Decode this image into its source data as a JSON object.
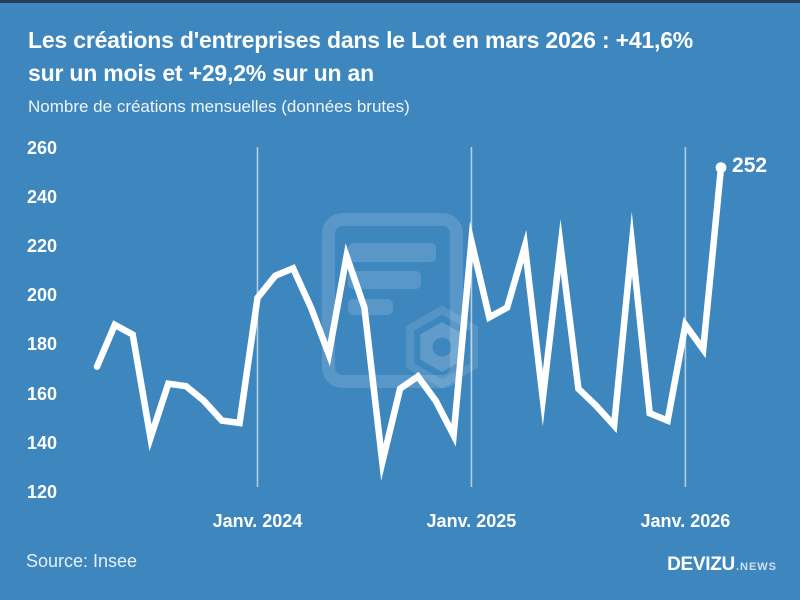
{
  "colors": {
    "background": "#3d86be",
    "line": "#ffffff",
    "gridline": "rgba(255,255,255,0.6)",
    "watermark": "rgba(255,255,255,0.14)"
  },
  "header": {
    "title_lines": [
      "Les créations d'entreprises dans le Lot en mars 2026 : +41,6%",
      "sur un mois et +29,2% sur un an"
    ],
    "subtitle": "Nombre de créations mensuelles (données brutes)"
  },
  "chart_data": {
    "type": "line",
    "title": "Les créations d'entreprises dans le Lot en mars 2026 : +41,6% sur un mois et +29,2% sur un an",
    "ylabel": "Nombre de créations mensuelles (données brutes)",
    "ylim": [
      120,
      260
    ],
    "yticks": [
      260,
      240,
      220,
      200,
      180,
      160,
      140,
      120
    ],
    "grid": "vertical-only",
    "legend": "none",
    "x": [
      "2023-04",
      "2023-05",
      "2023-06",
      "2023-07",
      "2023-08",
      "2023-09",
      "2023-10",
      "2023-11",
      "2023-12",
      "2024-01",
      "2024-02",
      "2024-03",
      "2024-04",
      "2024-05",
      "2024-06",
      "2024-07",
      "2024-08",
      "2024-09",
      "2024-10",
      "2024-11",
      "2024-12",
      "2025-01",
      "2025-02",
      "2025-03",
      "2025-04",
      "2025-05",
      "2025-06",
      "2025-07",
      "2025-08",
      "2025-09",
      "2025-10",
      "2025-11",
      "2025-12",
      "2026-01",
      "2026-02",
      "2026-03"
    ],
    "values": [
      171,
      188,
      184,
      142,
      164,
      163,
      157,
      149,
      148,
      199,
      208,
      211,
      195,
      176,
      216,
      195,
      132,
      162,
      167,
      157,
      143,
      222,
      191,
      195,
      220,
      158,
      220,
      162,
      155,
      147,
      221,
      152,
      149,
      188,
      178,
      252
    ],
    "x_axis_labels": [
      {
        "label": "Janv. 2024",
        "month_index": 9
      },
      {
        "label": "Janv. 2025",
        "month_index": 21
      },
      {
        "label": "Janv. 2026",
        "month_index": 33
      }
    ],
    "end_point": {
      "label": "252",
      "value": 252,
      "x": "2026-03"
    }
  },
  "footer": {
    "source": "Source: Insee",
    "brand_main": "DEVIZU",
    "brand_suffix": ".NEWS"
  }
}
